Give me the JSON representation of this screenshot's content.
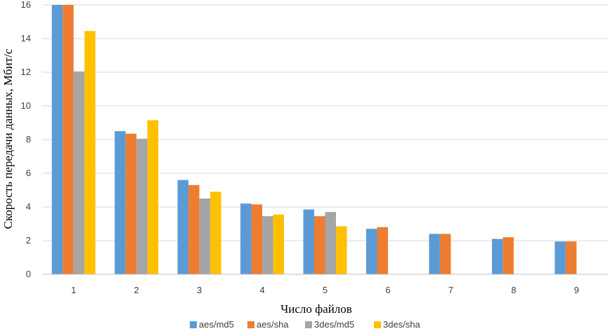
{
  "chart_data": {
    "type": "bar",
    "title": "",
    "xlabel": "Число файлов",
    "ylabel": "Скорость передачи данных, Мбит/с",
    "categories": [
      "1",
      "2",
      "3",
      "4",
      "5",
      "6",
      "7",
      "8",
      "9"
    ],
    "ylim": [
      0,
      16
    ],
    "yticks": [
      "0",
      "2",
      "4",
      "6",
      "8",
      "10",
      "12",
      "14",
      "16"
    ],
    "grid": true,
    "legend_position": "bottom",
    "series": [
      {
        "name": "aes/md5",
        "color": "#5B9BD5",
        "values": [
          16.0,
          8.5,
          5.6,
          4.2,
          3.85,
          2.7,
          2.4,
          2.1,
          1.95
        ]
      },
      {
        "name": "aes/sha",
        "color": "#ED7D31",
        "values": [
          16.0,
          8.35,
          5.3,
          4.15,
          3.45,
          2.8,
          2.4,
          2.2,
          1.95
        ]
      },
      {
        "name": "3des/md5",
        "color": "#A5A5A5",
        "values": [
          12.05,
          8.05,
          4.5,
          3.45,
          3.7,
          null,
          null,
          null,
          null
        ]
      },
      {
        "name": "3des/sha",
        "color": "#FFC000",
        "values": [
          14.45,
          9.15,
          4.9,
          3.55,
          2.85,
          null,
          null,
          null,
          null
        ]
      }
    ]
  }
}
